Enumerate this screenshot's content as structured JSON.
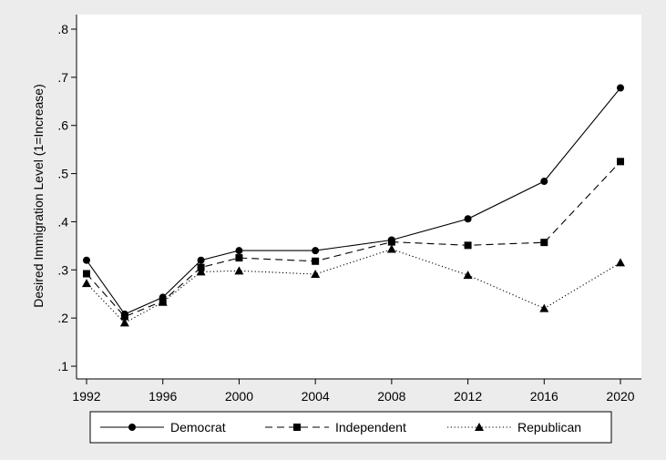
{
  "chart_data": {
    "type": "line",
    "xlabel": "",
    "ylabel": "Desired Immigration Level (1=Increase)",
    "xlim": [
      1992,
      2020
    ],
    "ylim": [
      0.1,
      0.8
    ],
    "x_ticks": [
      1992,
      1996,
      2000,
      2004,
      2008,
      2012,
      2016,
      2020
    ],
    "x_tick_labels": [
      "1992",
      "1996",
      "2000",
      "2004",
      "2008",
      "2012",
      "2016",
      "2020"
    ],
    "y_ticks": [
      0.1,
      0.2,
      0.3,
      0.4,
      0.5,
      0.6,
      0.7,
      0.8
    ],
    "y_tick_labels": [
      ".1",
      ".2",
      ".3",
      ".4",
      ".5",
      ".6",
      ".7",
      ".8"
    ],
    "grid": false,
    "legend_position": "bottom",
    "series": [
      {
        "name": "Democrat",
        "marker": "circle",
        "line_style": "solid",
        "x": [
          1992,
          1994,
          1996,
          1998,
          2000,
          2004,
          2008,
          2012,
          2016,
          2020
        ],
        "y": [
          0.32,
          0.208,
          0.243,
          0.32,
          0.34,
          0.34,
          0.362,
          0.406,
          0.484,
          0.678
        ]
      },
      {
        "name": "Independent",
        "marker": "square",
        "line_style": "dashed",
        "x": [
          1992,
          1994,
          1996,
          1998,
          2000,
          2004,
          2008,
          2012,
          2016,
          2020
        ],
        "y": [
          0.292,
          0.203,
          0.235,
          0.305,
          0.325,
          0.318,
          0.358,
          0.351,
          0.357,
          0.525
        ]
      },
      {
        "name": "Republican",
        "marker": "triangle",
        "line_style": "dotted",
        "x": [
          1992,
          1994,
          1996,
          1998,
          2000,
          2004,
          2008,
          2012,
          2016,
          2020
        ],
        "y": [
          0.272,
          0.19,
          0.233,
          0.296,
          0.298,
          0.291,
          0.343,
          0.289,
          0.22,
          0.315
        ]
      }
    ]
  }
}
